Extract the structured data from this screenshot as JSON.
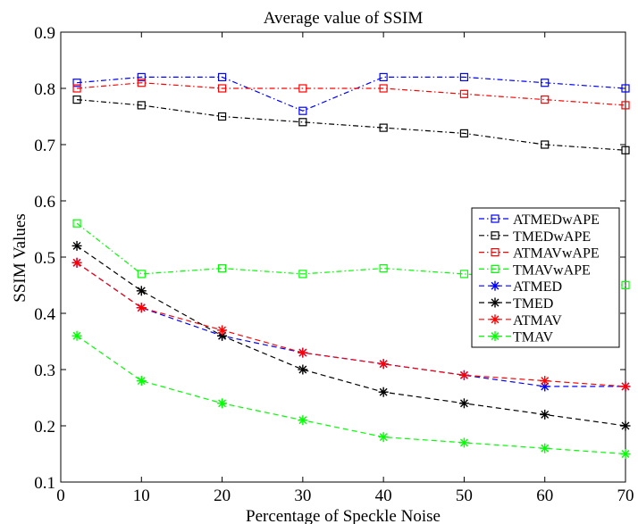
{
  "chart_data": {
    "type": "line",
    "title": "Average value of SSIM",
    "xlabel": "Percentage of Speckle Noise",
    "ylabel": "SSIM Values",
    "xlim": [
      0,
      70
    ],
    "ylim": [
      0.1,
      0.9
    ],
    "xticks": [
      0,
      10,
      20,
      30,
      40,
      50,
      60,
      70
    ],
    "yticks": [
      0.1,
      0.2,
      0.3,
      0.4,
      0.5,
      0.6,
      0.7,
      0.8,
      0.9
    ],
    "grid": false,
    "legend_position": "right",
    "x": [
      2,
      10,
      20,
      30,
      40,
      50,
      60,
      70
    ],
    "series": [
      {
        "name": "ATMEDwAPE",
        "color": "#0000ff",
        "dash": "dashdot",
        "marker": "square",
        "values": [
          0.81,
          0.82,
          0.82,
          0.76,
          0.82,
          0.82,
          0.81,
          0.8
        ]
      },
      {
        "name": "TMEDwAPE",
        "color": "#000000",
        "dash": "dashdot",
        "marker": "square",
        "values": [
          0.78,
          0.77,
          0.75,
          0.74,
          0.73,
          0.72,
          0.7,
          0.69
        ]
      },
      {
        "name": "ATMAVwAPE",
        "color": "#ff0000",
        "dash": "dashdot",
        "marker": "square",
        "values": [
          0.8,
          0.81,
          0.8,
          0.8,
          0.8,
          0.79,
          0.78,
          0.77
        ]
      },
      {
        "name": "TMAVwAPE",
        "color": "#00ff00",
        "dash": "dashdot",
        "marker": "square",
        "values": [
          0.56,
          0.47,
          0.48,
          0.47,
          0.48,
          0.47,
          0.46,
          0.45
        ]
      },
      {
        "name": "ATMED",
        "color": "#0000ff",
        "dash": "dashed",
        "marker": "asterisk",
        "values": [
          0.49,
          0.41,
          0.36,
          0.33,
          0.31,
          0.29,
          0.27,
          0.27
        ]
      },
      {
        "name": "TMED",
        "color": "#000000",
        "dash": "dashed",
        "marker": "asterisk",
        "values": [
          0.52,
          0.44,
          0.36,
          0.3,
          0.26,
          0.24,
          0.22,
          0.2
        ]
      },
      {
        "name": "ATMAV",
        "color": "#ff0000",
        "dash": "dashed",
        "marker": "asterisk",
        "values": [
          0.49,
          0.41,
          0.37,
          0.33,
          0.31,
          0.29,
          0.28,
          0.27
        ]
      },
      {
        "name": "TMAV",
        "color": "#00ff00",
        "dash": "dashed",
        "marker": "asterisk",
        "values": [
          0.36,
          0.28,
          0.24,
          0.21,
          0.18,
          0.17,
          0.16,
          0.15
        ]
      }
    ]
  }
}
